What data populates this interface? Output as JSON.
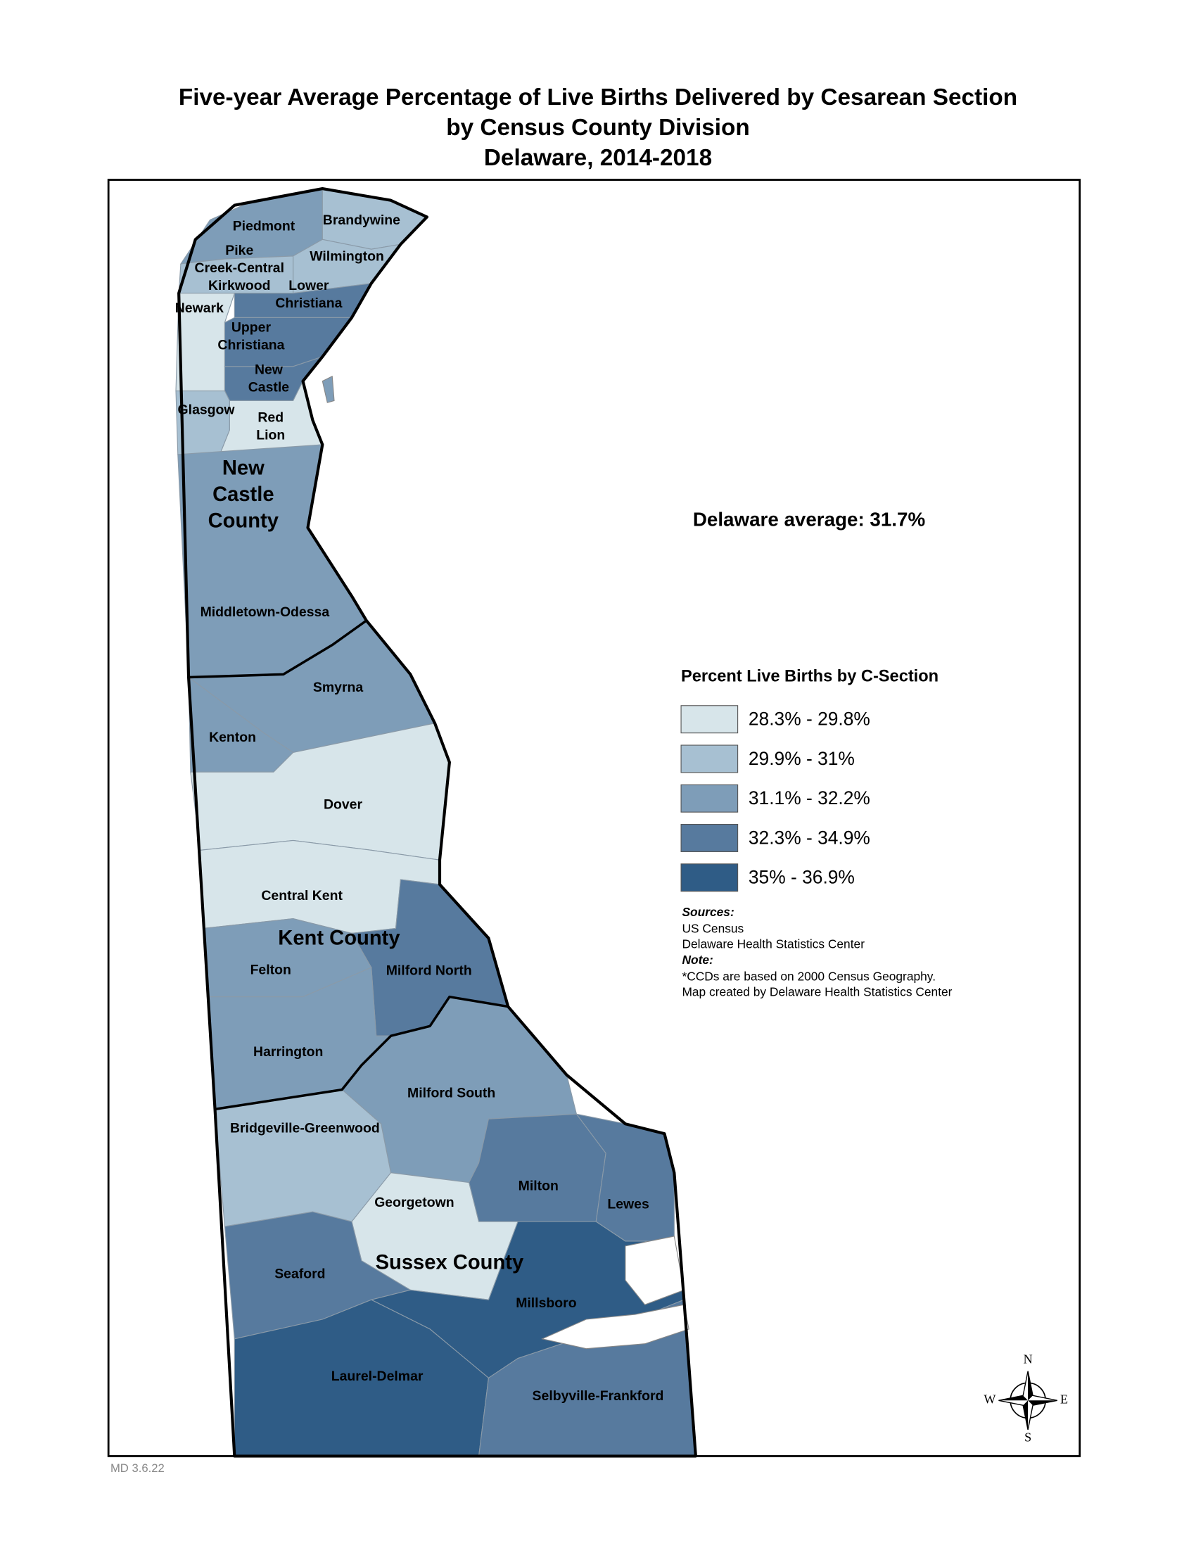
{
  "title": [
    "Five-year Average Percentage of Live Births Delivered by Cesarean Section",
    "by Census County Division",
    "Delaware, 2014-2018"
  ],
  "state_average": "Delaware average: 31.7%",
  "legend": {
    "title": "Percent Live Births by C-Section",
    "classes": [
      {
        "label": "28.3% - 29.8%",
        "color": "#d7e5ea"
      },
      {
        "label": "29.9% - 31%",
        "color": "#a7c0d2"
      },
      {
        "label": "31.1% - 32.2%",
        "color": "#7e9db8"
      },
      {
        "label": "32.3% - 34.9%",
        "color": "#577a9e"
      },
      {
        "label": "35% - 36.9%",
        "color": "#2f5c86"
      }
    ]
  },
  "regions": [
    {
      "name": "Piedmont",
      "color": "#7e9db8"
    },
    {
      "name": "Brandywine",
      "color": "#a7c0d2"
    },
    {
      "name": "Pike Creek-Central Kirkwood",
      "color": "#a7c0d2"
    },
    {
      "name": "Wilmington",
      "color": "#a7c0d2"
    },
    {
      "name": "Newark",
      "color": "#d7e5ea"
    },
    {
      "name": "Lower Christiana",
      "color": "#577a9e"
    },
    {
      "name": "Upper Christiana",
      "color": "#577a9e"
    },
    {
      "name": "New Castle",
      "color": "#577a9e"
    },
    {
      "name": "Glasgow",
      "color": "#a7c0d2"
    },
    {
      "name": "Red Lion",
      "color": "#d7e5ea"
    },
    {
      "name": "Middletown-Odessa",
      "color": "#7e9db8"
    },
    {
      "name": "Smyrna",
      "color": "#7e9db8"
    },
    {
      "name": "Kenton",
      "color": "#7e9db8"
    },
    {
      "name": "Dover",
      "color": "#d7e5ea"
    },
    {
      "name": "Central Kent",
      "color": "#d7e5ea"
    },
    {
      "name": "Milford North",
      "color": "#577a9e"
    },
    {
      "name": "Felton",
      "color": "#7e9db8"
    },
    {
      "name": "Harrington",
      "color": "#7e9db8"
    },
    {
      "name": "Milford South",
      "color": "#7e9db8"
    },
    {
      "name": "Bridgeville-Greenwood",
      "color": "#a7c0d2"
    },
    {
      "name": "Georgetown",
      "color": "#d7e5ea"
    },
    {
      "name": "Milton",
      "color": "#577a9e"
    },
    {
      "name": "Lewes",
      "color": "#577a9e"
    },
    {
      "name": "Seaford",
      "color": "#577a9e"
    },
    {
      "name": "Millsboro",
      "color": "#2f5c86"
    },
    {
      "name": "Laurel-Delmar",
      "color": "#2f5c86"
    },
    {
      "name": "Selbyville-Frankford",
      "color": "#577a9e"
    }
  ],
  "counties": [
    "New Castle County",
    "Kent County",
    "Sussex County"
  ],
  "sources": {
    "heading": "Sources:",
    "lines": [
      "US Census",
      "Delaware Health Statistics Center"
    ]
  },
  "note": {
    "heading": "Note:",
    "lines": [
      "*CCDs are based on 2000 Census Geography.",
      "Map created by Delaware Health Statistics Center"
    ]
  },
  "compass": {
    "n": "N",
    "e": "E",
    "s": "S",
    "w": "W"
  },
  "footer": "MD 3.6.22"
}
